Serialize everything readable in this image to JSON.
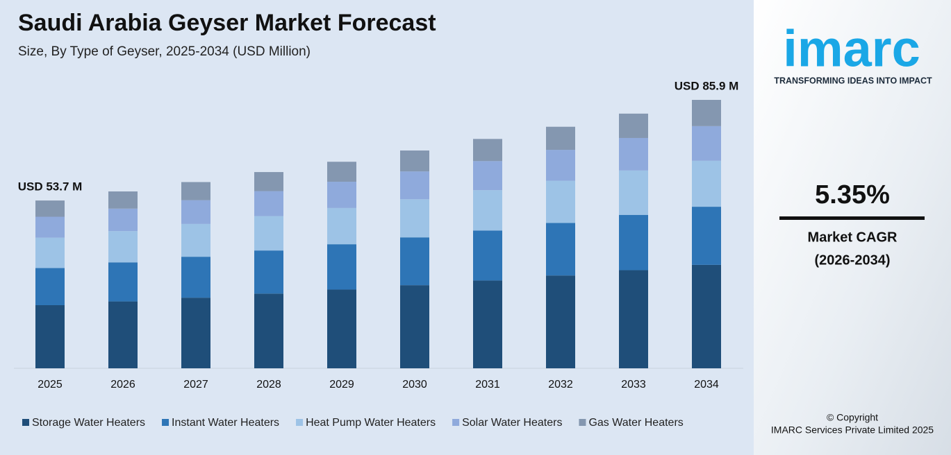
{
  "chart_data": {
    "type": "stacked-bar",
    "title": "Saudi Arabia Geyser Market Forecast",
    "subtitle": "Size, By Type of Geyser, 2025-2034 (USD Million)",
    "categories": [
      "2025",
      "2026",
      "2027",
      "2028",
      "2029",
      "2030",
      "2031",
      "2032",
      "2033",
      "2034"
    ],
    "series": [
      {
        "name": "Storage Water Heaters",
        "color": "#1f4e79",
        "values": [
          20.2,
          21.4,
          22.6,
          23.9,
          25.2,
          26.6,
          28.1,
          29.7,
          31.4,
          33.1
        ]
      },
      {
        "name": "Instant Water Heaters",
        "color": "#2e75b6",
        "values": [
          11.9,
          12.5,
          13.1,
          13.8,
          14.5,
          15.3,
          16.0,
          16.8,
          17.7,
          18.6
        ]
      },
      {
        "name": "Heat Pump Water Heaters",
        "color": "#9dc3e6",
        "values": [
          9.7,
          10.0,
          10.5,
          11.0,
          11.6,
          12.2,
          12.9,
          13.5,
          14.2,
          14.7
        ]
      },
      {
        "name": "Solar Water Heaters",
        "color": "#8faadc",
        "values": [
          6.7,
          7.2,
          7.6,
          8.0,
          8.4,
          8.9,
          9.3,
          9.9,
          10.4,
          11.1
        ]
      },
      {
        "name": "Gas Water Heaters",
        "color": "#8497b0",
        "values": [
          5.2,
          5.5,
          5.8,
          6.1,
          6.4,
          6.7,
          7.1,
          7.4,
          7.8,
          8.4
        ]
      }
    ],
    "annotations": [
      {
        "text": "USD 53.7 M",
        "category": "2025"
      },
      {
        "text": "USD 85.9 M",
        "category": "2034"
      }
    ],
    "legend": "bottom"
  },
  "sidebar": {
    "logo": "imarc",
    "tagline": "TRANSFORMING IDEAS INTO IMPACT",
    "cagr": "5.35%",
    "cagr_label": "Market CAGR",
    "cagr_period": "(2026-2034)",
    "copyright": "© Copyright",
    "company": "IMARC Services Private Limited 2025"
  }
}
